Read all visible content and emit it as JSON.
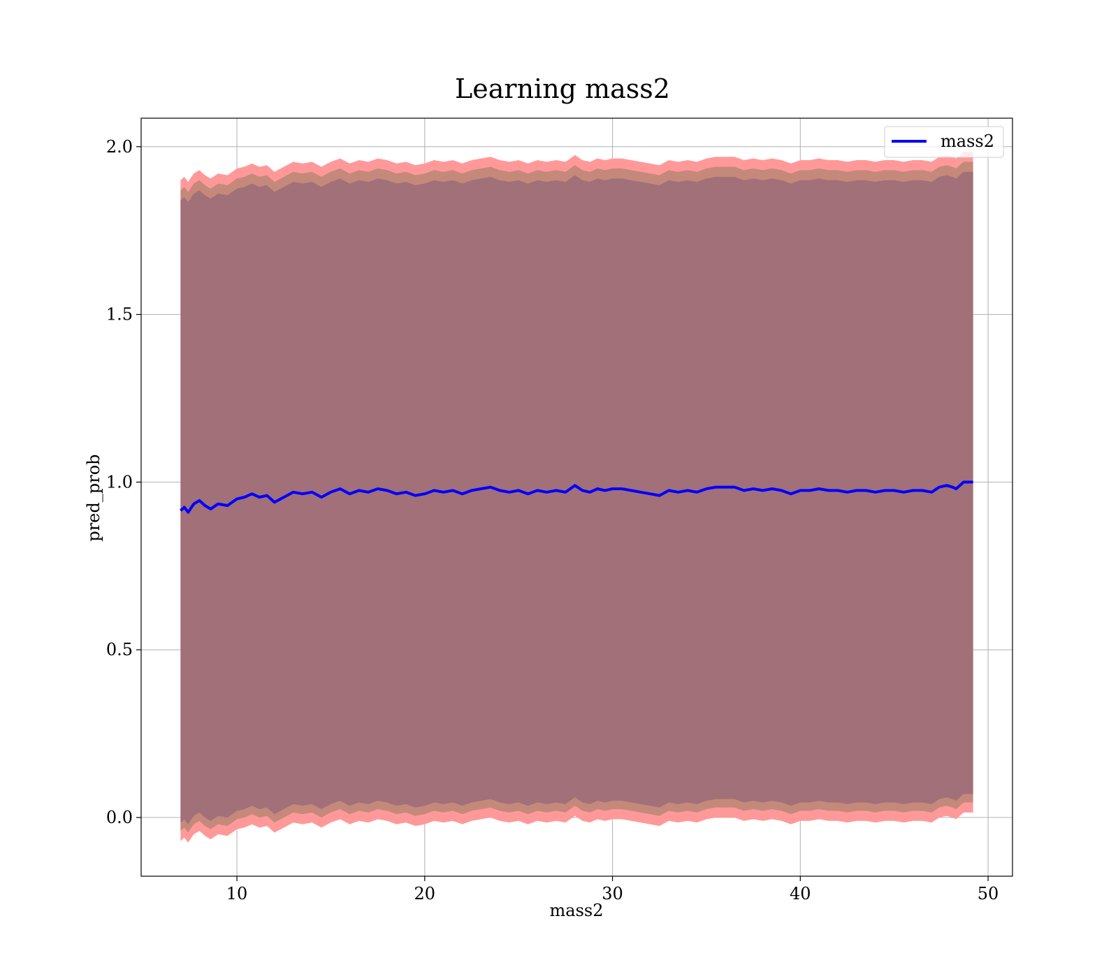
{
  "chart_data": {
    "type": "line",
    "title": "Learning mass2",
    "xlabel": "mass2",
    "ylabel": "pred_prob",
    "xlim": [
      4.9,
      51.3
    ],
    "ylim": [
      -0.175,
      2.085
    ],
    "xticks": [
      10,
      20,
      30,
      40,
      50
    ],
    "yticks": [
      0.0,
      0.5,
      1.0,
      1.5,
      2.0
    ],
    "xtick_labels": [
      "10",
      "20",
      "30",
      "40",
      "50"
    ],
    "ytick_labels": [
      "0.0",
      "0.5",
      "1.0",
      "1.5",
      "2.0"
    ],
    "grid": true,
    "legend_position": "upper right",
    "series": [
      {
        "name": "mass2",
        "color": "#0000ff",
        "x": [
          7.0,
          7.2,
          7.4,
          7.7,
          8.0,
          8.3,
          8.6,
          9.0,
          9.5,
          10.0,
          10.4,
          10.8,
          11.2,
          11.6,
          12.0,
          12.5,
          13.0,
          13.5,
          14.0,
          14.5,
          15.0,
          15.5,
          16.0,
          16.5,
          17.0,
          17.5,
          18.0,
          18.5,
          19.0,
          19.5,
          20.0,
          20.5,
          21.0,
          21.5,
          22.0,
          22.5,
          23.0,
          23.5,
          24.0,
          24.5,
          25.0,
          25.5,
          26.0,
          26.5,
          27.0,
          27.5,
          28.0,
          28.4,
          28.8,
          29.2,
          29.6,
          30.0,
          30.5,
          31.0,
          31.5,
          32.0,
          32.5,
          33.0,
          33.5,
          34.0,
          34.5,
          35.0,
          35.5,
          36.0,
          36.5,
          37.0,
          37.5,
          38.0,
          38.5,
          39.0,
          39.5,
          40.0,
          40.5,
          41.0,
          41.5,
          42.0,
          42.5,
          43.0,
          43.5,
          44.0,
          44.5,
          45.0,
          45.5,
          46.0,
          46.5,
          47.0,
          47.4,
          47.8,
          48.1,
          48.3,
          48.7,
          49.2
        ],
        "values": [
          0.915,
          0.925,
          0.91,
          0.935,
          0.945,
          0.93,
          0.92,
          0.935,
          0.93,
          0.95,
          0.955,
          0.965,
          0.955,
          0.96,
          0.94,
          0.955,
          0.97,
          0.965,
          0.97,
          0.955,
          0.97,
          0.98,
          0.965,
          0.975,
          0.97,
          0.98,
          0.975,
          0.965,
          0.97,
          0.96,
          0.965,
          0.975,
          0.97,
          0.975,
          0.965,
          0.975,
          0.98,
          0.985,
          0.975,
          0.97,
          0.975,
          0.965,
          0.975,
          0.97,
          0.975,
          0.97,
          0.99,
          0.975,
          0.97,
          0.98,
          0.975,
          0.98,
          0.98,
          0.975,
          0.97,
          0.965,
          0.96,
          0.975,
          0.97,
          0.975,
          0.97,
          0.98,
          0.985,
          0.985,
          0.985,
          0.975,
          0.98,
          0.975,
          0.98,
          0.975,
          0.965,
          0.975,
          0.975,
          0.98,
          0.975,
          0.975,
          0.97,
          0.975,
          0.975,
          0.97,
          0.975,
          0.975,
          0.97,
          0.975,
          0.975,
          0.97,
          0.985,
          0.99,
          0.985,
          0.98,
          1.0,
          1.0
        ]
      }
    ],
    "bands": [
      {
        "color": "#ff9999",
        "lower_offset": 0.985,
        "upper_offset": 0.985
      },
      {
        "color": "#c4897a",
        "lower_offset": 0.955,
        "upper_offset": 0.955
      },
      {
        "color": "#a17078",
        "lower_offset": 0.93,
        "upper_offset": 0.925
      }
    ]
  }
}
